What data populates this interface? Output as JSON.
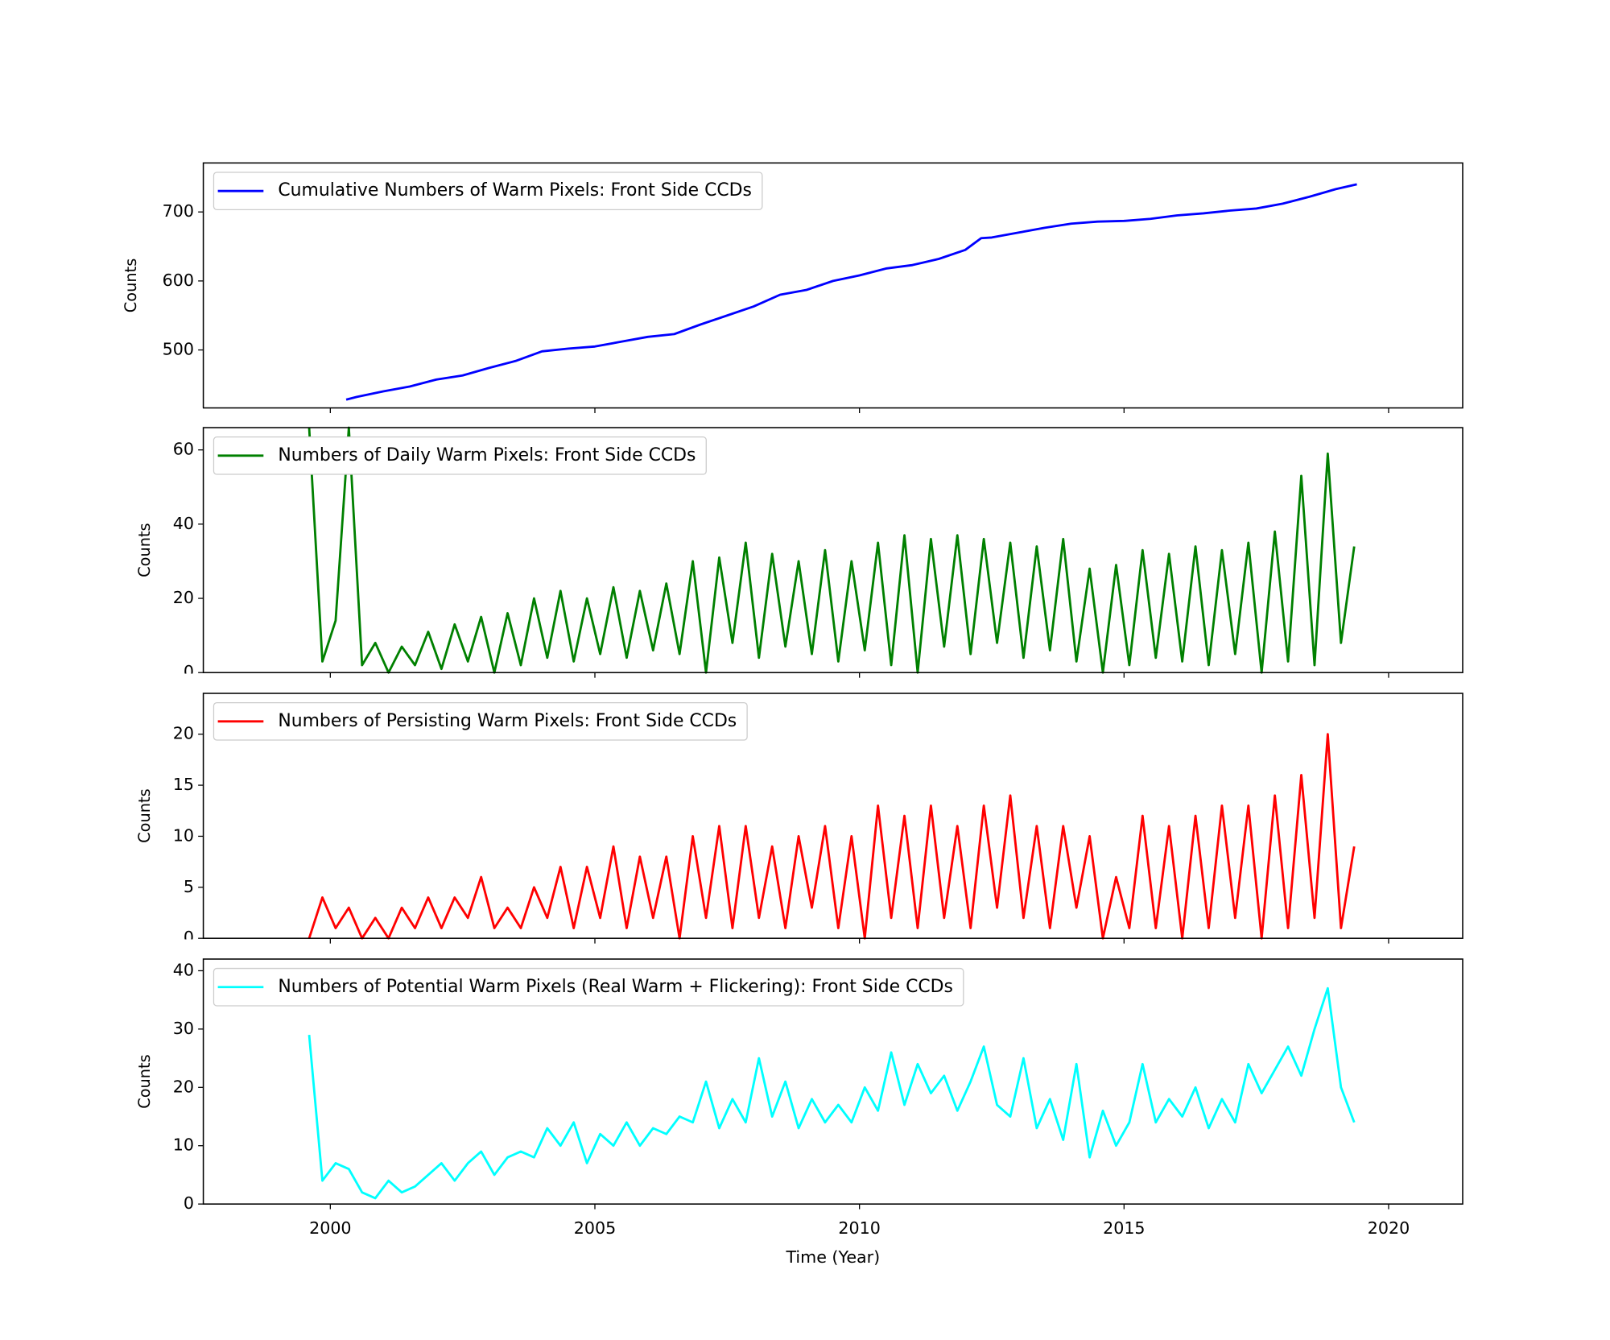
{
  "chart_data": [
    {
      "type": "line",
      "ylabel": "Counts",
      "legend": "upper left",
      "xlim": [
        1997.6,
        2021.4
      ],
      "xticks": [
        2000,
        2005,
        2010,
        2015,
        2020
      ],
      "ylim": [
        416,
        771
      ],
      "yticks": [
        500,
        600,
        700
      ],
      "x": [
        2000.3,
        2000.5,
        2001,
        2001.5,
        2002,
        2002.5,
        2003,
        2003.5,
        2004,
        2004.5,
        2005,
        2005.5,
        2006,
        2006.5,
        2007,
        2007.5,
        2008,
        2008.5,
        2009,
        2009.5,
        2010,
        2010.5,
        2011,
        2011.5,
        2012,
        2012.3,
        2012.5,
        2013,
        2013.5,
        2014,
        2014.5,
        2015,
        2015.5,
        2016,
        2016.5,
        2017,
        2017.5,
        2018,
        2018.5,
        2019,
        2019.4
      ],
      "series": [
        {
          "name": "Cumulative Numbers of Warm Pixels: Front Side CCDs",
          "color": "#0000ff",
          "values": [
            428,
            432,
            440,
            447,
            457,
            463,
            474,
            484,
            498,
            502,
            505,
            512,
            519,
            523,
            537,
            550,
            563,
            580,
            587,
            600,
            608,
            618,
            623,
            632,
            645,
            662,
            663,
            670,
            677,
            683,
            686,
            687,
            690,
            695,
            698,
            702,
            705,
            712,
            722,
            733,
            740
          ]
        }
      ]
    },
    {
      "type": "line",
      "ylabel": "Counts",
      "legend": "upper left",
      "xlim": [
        1997.6,
        2021.4
      ],
      "xticks": [
        2000,
        2005,
        2010,
        2015,
        2020
      ],
      "ylim": [
        0,
        66
      ],
      "yticks": [
        0,
        20,
        40,
        60
      ],
      "x": [
        1999.6,
        1999.85,
        2000.1,
        2000.35,
        2000.6,
        2000.85,
        2001.1,
        2001.35,
        2001.6,
        2001.85,
        2002.1,
        2002.35,
        2002.6,
        2002.85,
        2003.1,
        2003.35,
        2003.6,
        2003.85,
        2004.1,
        2004.35,
        2004.6,
        2004.85,
        2005.1,
        2005.35,
        2005.6,
        2005.85,
        2006.1,
        2006.35,
        2006.6,
        2006.85,
        2007.1,
        2007.35,
        2007.6,
        2007.85,
        2008.1,
        2008.35,
        2008.6,
        2008.85,
        2009.1,
        2009.35,
        2009.6,
        2009.85,
        2010.1,
        2010.35,
        2010.6,
        2010.85,
        2011.1,
        2011.35,
        2011.6,
        2011.85,
        2012.1,
        2012.35,
        2012.6,
        2012.85,
        2013.1,
        2013.35,
        2013.6,
        2013.85,
        2014.1,
        2014.35,
        2014.6,
        2014.85,
        2015.1,
        2015.35,
        2015.6,
        2015.85,
        2016.1,
        2016.35,
        2016.6,
        2016.85,
        2017.1,
        2017.35,
        2017.6,
        2017.85,
        2018.1,
        2018.35,
        2018.6,
        2018.85,
        2019.1,
        2019.35
      ],
      "series": [
        {
          "name": "Numbers of Daily Warm Pixels: Front Side CCDs",
          "color": "#008000",
          "values": [
            66,
            3,
            14,
            66,
            2,
            8,
            0,
            7,
            2,
            11,
            1,
            13,
            3,
            15,
            0,
            16,
            2,
            20,
            4,
            22,
            3,
            20,
            5,
            23,
            4,
            22,
            6,
            24,
            5,
            30,
            0,
            31,
            8,
            35,
            4,
            32,
            7,
            30,
            5,
            33,
            3,
            30,
            6,
            35,
            2,
            37,
            0,
            36,
            7,
            37,
            5,
            36,
            8,
            35,
            4,
            34,
            6,
            36,
            3,
            28,
            0,
            29,
            2,
            33,
            4,
            32,
            3,
            34,
            2,
            33,
            5,
            35,
            0,
            38,
            3,
            53,
            2,
            59,
            8,
            34
          ]
        }
      ]
    },
    {
      "type": "line",
      "ylabel": "Counts",
      "legend": "upper left",
      "xlim": [
        1997.6,
        2021.4
      ],
      "xticks": [
        2000,
        2005,
        2010,
        2015,
        2020
      ],
      "ylim": [
        0,
        24
      ],
      "yticks": [
        0,
        5,
        10,
        15,
        20
      ],
      "x": [
        1999.6,
        1999.85,
        2000.1,
        2000.35,
        2000.6,
        2000.85,
        2001.1,
        2001.35,
        2001.6,
        2001.85,
        2002.1,
        2002.35,
        2002.6,
        2002.85,
        2003.1,
        2003.35,
        2003.6,
        2003.85,
        2004.1,
        2004.35,
        2004.6,
        2004.85,
        2005.1,
        2005.35,
        2005.6,
        2005.85,
        2006.1,
        2006.35,
        2006.6,
        2006.85,
        2007.1,
        2007.35,
        2007.6,
        2007.85,
        2008.1,
        2008.35,
        2008.6,
        2008.85,
        2009.1,
        2009.35,
        2009.6,
        2009.85,
        2010.1,
        2010.35,
        2010.6,
        2010.85,
        2011.1,
        2011.35,
        2011.6,
        2011.85,
        2012.1,
        2012.35,
        2012.6,
        2012.85,
        2013.1,
        2013.35,
        2013.6,
        2013.85,
        2014.1,
        2014.35,
        2014.6,
        2014.85,
        2015.1,
        2015.35,
        2015.6,
        2015.85,
        2016.1,
        2016.35,
        2016.6,
        2016.85,
        2017.1,
        2017.35,
        2017.6,
        2017.85,
        2018.1,
        2018.35,
        2018.6,
        2018.85,
        2019.1,
        2019.35
      ],
      "series": [
        {
          "name": "Numbers of Persisting Warm Pixels: Front Side CCDs",
          "color": "#ff0000",
          "values": [
            0,
            4,
            1,
            3,
            0,
            2,
            0,
            3,
            1,
            4,
            1,
            4,
            2,
            6,
            1,
            3,
            1,
            5,
            2,
            7,
            1,
            7,
            2,
            9,
            1,
            8,
            2,
            8,
            0,
            10,
            2,
            11,
            1,
            11,
            2,
            9,
            1,
            10,
            3,
            11,
            1,
            10,
            0,
            13,
            2,
            12,
            1,
            13,
            2,
            11,
            1,
            13,
            3,
            14,
            2,
            11,
            1,
            11,
            3,
            10,
            0,
            6,
            1,
            12,
            1,
            11,
            0,
            12,
            1,
            13,
            2,
            13,
            0,
            14,
            1,
            16,
            2,
            20,
            1,
            9
          ]
        }
      ]
    },
    {
      "type": "line",
      "ylabel": "Counts",
      "xlabel": "Time (Year)",
      "legend": "upper left",
      "xlim": [
        1997.6,
        2021.4
      ],
      "xticks": [
        2000,
        2005,
        2010,
        2015,
        2020
      ],
      "ylim": [
        0,
        42
      ],
      "yticks": [
        0,
        10,
        20,
        30,
        40
      ],
      "x": [
        1999.6,
        1999.85,
        2000.1,
        2000.35,
        2000.6,
        2000.85,
        2001.1,
        2001.35,
        2001.6,
        2001.85,
        2002.1,
        2002.35,
        2002.6,
        2002.85,
        2003.1,
        2003.35,
        2003.6,
        2003.85,
        2004.1,
        2004.35,
        2004.6,
        2004.85,
        2005.1,
        2005.35,
        2005.6,
        2005.85,
        2006.1,
        2006.35,
        2006.6,
        2006.85,
        2007.1,
        2007.35,
        2007.6,
        2007.85,
        2008.1,
        2008.35,
        2008.6,
        2008.85,
        2009.1,
        2009.35,
        2009.6,
        2009.85,
        2010.1,
        2010.35,
        2010.6,
        2010.85,
        2011.1,
        2011.35,
        2011.6,
        2011.85,
        2012.1,
        2012.35,
        2012.6,
        2012.85,
        2013.1,
        2013.35,
        2013.6,
        2013.85,
        2014.1,
        2014.35,
        2014.6,
        2014.85,
        2015.1,
        2015.35,
        2015.6,
        2015.85,
        2016.1,
        2016.35,
        2016.6,
        2016.85,
        2017.1,
        2017.35,
        2017.6,
        2017.85,
        2018.1,
        2018.35,
        2018.6,
        2018.85,
        2019.1,
        2019.35
      ],
      "series": [
        {
          "name": "Numbers of Potential Warm Pixels (Real Warm + Flickering): Front Side CCDs",
          "color": "#00ffff",
          "values": [
            29,
            4,
            7,
            6,
            2,
            1,
            4,
            2,
            3,
            5,
            7,
            4,
            7,
            9,
            5,
            8,
            9,
            8,
            13,
            10,
            14,
            7,
            12,
            10,
            14,
            10,
            13,
            12,
            15,
            14,
            21,
            13,
            18,
            14,
            25,
            15,
            21,
            13,
            18,
            14,
            17,
            14,
            20,
            16,
            26,
            17,
            24,
            19,
            22,
            16,
            21,
            27,
            17,
            15,
            25,
            13,
            18,
            11,
            24,
            8,
            16,
            10,
            14,
            24,
            14,
            18,
            15,
            20,
            13,
            18,
            14,
            24,
            19,
            23,
            27,
            22,
            30,
            37,
            20,
            14
          ]
        }
      ]
    }
  ]
}
